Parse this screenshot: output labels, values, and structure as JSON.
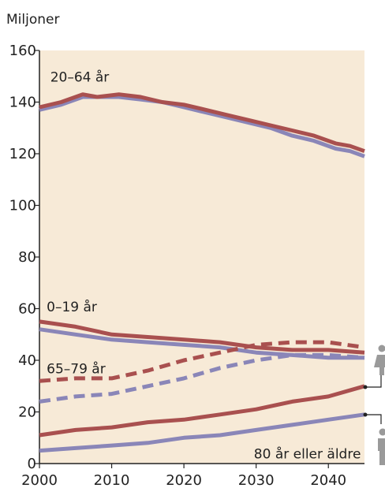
{
  "chart_data": {
    "type": "line",
    "unit_label": "Miljoner",
    "xlim": [
      2000,
      2045
    ],
    "ylim": [
      0,
      160
    ],
    "x_ticks": [
      2000,
      2010,
      2020,
      2030,
      2040
    ],
    "y_ticks": [
      0,
      20,
      40,
      60,
      80,
      100,
      120,
      140,
      160
    ],
    "colors": {
      "women": "#a9504f",
      "men": "#8a86b8",
      "background": "#f7ead7"
    },
    "legend": [
      "woman-icon",
      "man-icon"
    ],
    "annotations": [
      "20–64 år",
      "0–19 år",
      "65–79 år",
      "80 år eller äldre"
    ],
    "series": [
      {
        "group": "20–64 år",
        "sex": "women",
        "style": "solid",
        "x": [
          2000,
          2003,
          2006,
          2008,
          2011,
          2014,
          2017,
          2020,
          2023,
          2026,
          2029,
          2032,
          2035,
          2038,
          2041,
          2043,
          2045
        ],
        "y": [
          138,
          140,
          143,
          142,
          143,
          142,
          140,
          139,
          137,
          135,
          133,
          131,
          129,
          127,
          124,
          123,
          121
        ]
      },
      {
        "group": "20–64 år",
        "sex": "men",
        "style": "solid",
        "x": [
          2000,
          2003,
          2006,
          2008,
          2011,
          2014,
          2017,
          2020,
          2023,
          2026,
          2029,
          2032,
          2035,
          2038,
          2041,
          2043,
          2045
        ],
        "y": [
          137,
          139,
          142,
          142,
          142,
          141,
          140,
          138,
          136,
          134,
          132,
          130,
          127,
          125,
          122,
          121,
          119
        ]
      },
      {
        "group": "0–19 år",
        "sex": "women",
        "style": "solid",
        "x": [
          2000,
          2005,
          2010,
          2015,
          2020,
          2025,
          2030,
          2035,
          2040,
          2045
        ],
        "y": [
          55,
          53,
          50,
          49,
          48,
          47,
          45,
          44,
          44,
          43
        ]
      },
      {
        "group": "0–19 år",
        "sex": "men",
        "style": "solid",
        "x": [
          2000,
          2005,
          2010,
          2015,
          2020,
          2025,
          2030,
          2035,
          2040,
          2045
        ],
        "y": [
          52,
          50,
          48,
          47,
          46,
          45,
          43,
          42,
          41,
          41
        ]
      },
      {
        "group": "65–79 år",
        "sex": "women",
        "style": "dashed",
        "x": [
          2000,
          2005,
          2010,
          2015,
          2020,
          2025,
          2030,
          2035,
          2040,
          2045
        ],
        "y": [
          32,
          33,
          33,
          36,
          40,
          43,
          46,
          47,
          47,
          45
        ]
      },
      {
        "group": "65–79 år",
        "sex": "men",
        "style": "dashed",
        "x": [
          2000,
          2005,
          2010,
          2015,
          2020,
          2025,
          2030,
          2035,
          2040,
          2045
        ],
        "y": [
          24,
          26,
          27,
          30,
          33,
          37,
          40,
          42,
          42,
          41
        ]
      },
      {
        "group": "80 år eller äldre",
        "sex": "women",
        "style": "solid",
        "x": [
          2000,
          2005,
          2010,
          2015,
          2020,
          2025,
          2030,
          2035,
          2040,
          2045
        ],
        "y": [
          11,
          13,
          14,
          16,
          17,
          19,
          21,
          24,
          26,
          30
        ]
      },
      {
        "group": "80 år eller äldre",
        "sex": "men",
        "style": "solid",
        "x": [
          2000,
          2005,
          2010,
          2015,
          2020,
          2025,
          2030,
          2035,
          2040,
          2045
        ],
        "y": [
          5,
          6,
          7,
          8,
          10,
          11,
          13,
          15,
          17,
          19
        ]
      }
    ]
  }
}
